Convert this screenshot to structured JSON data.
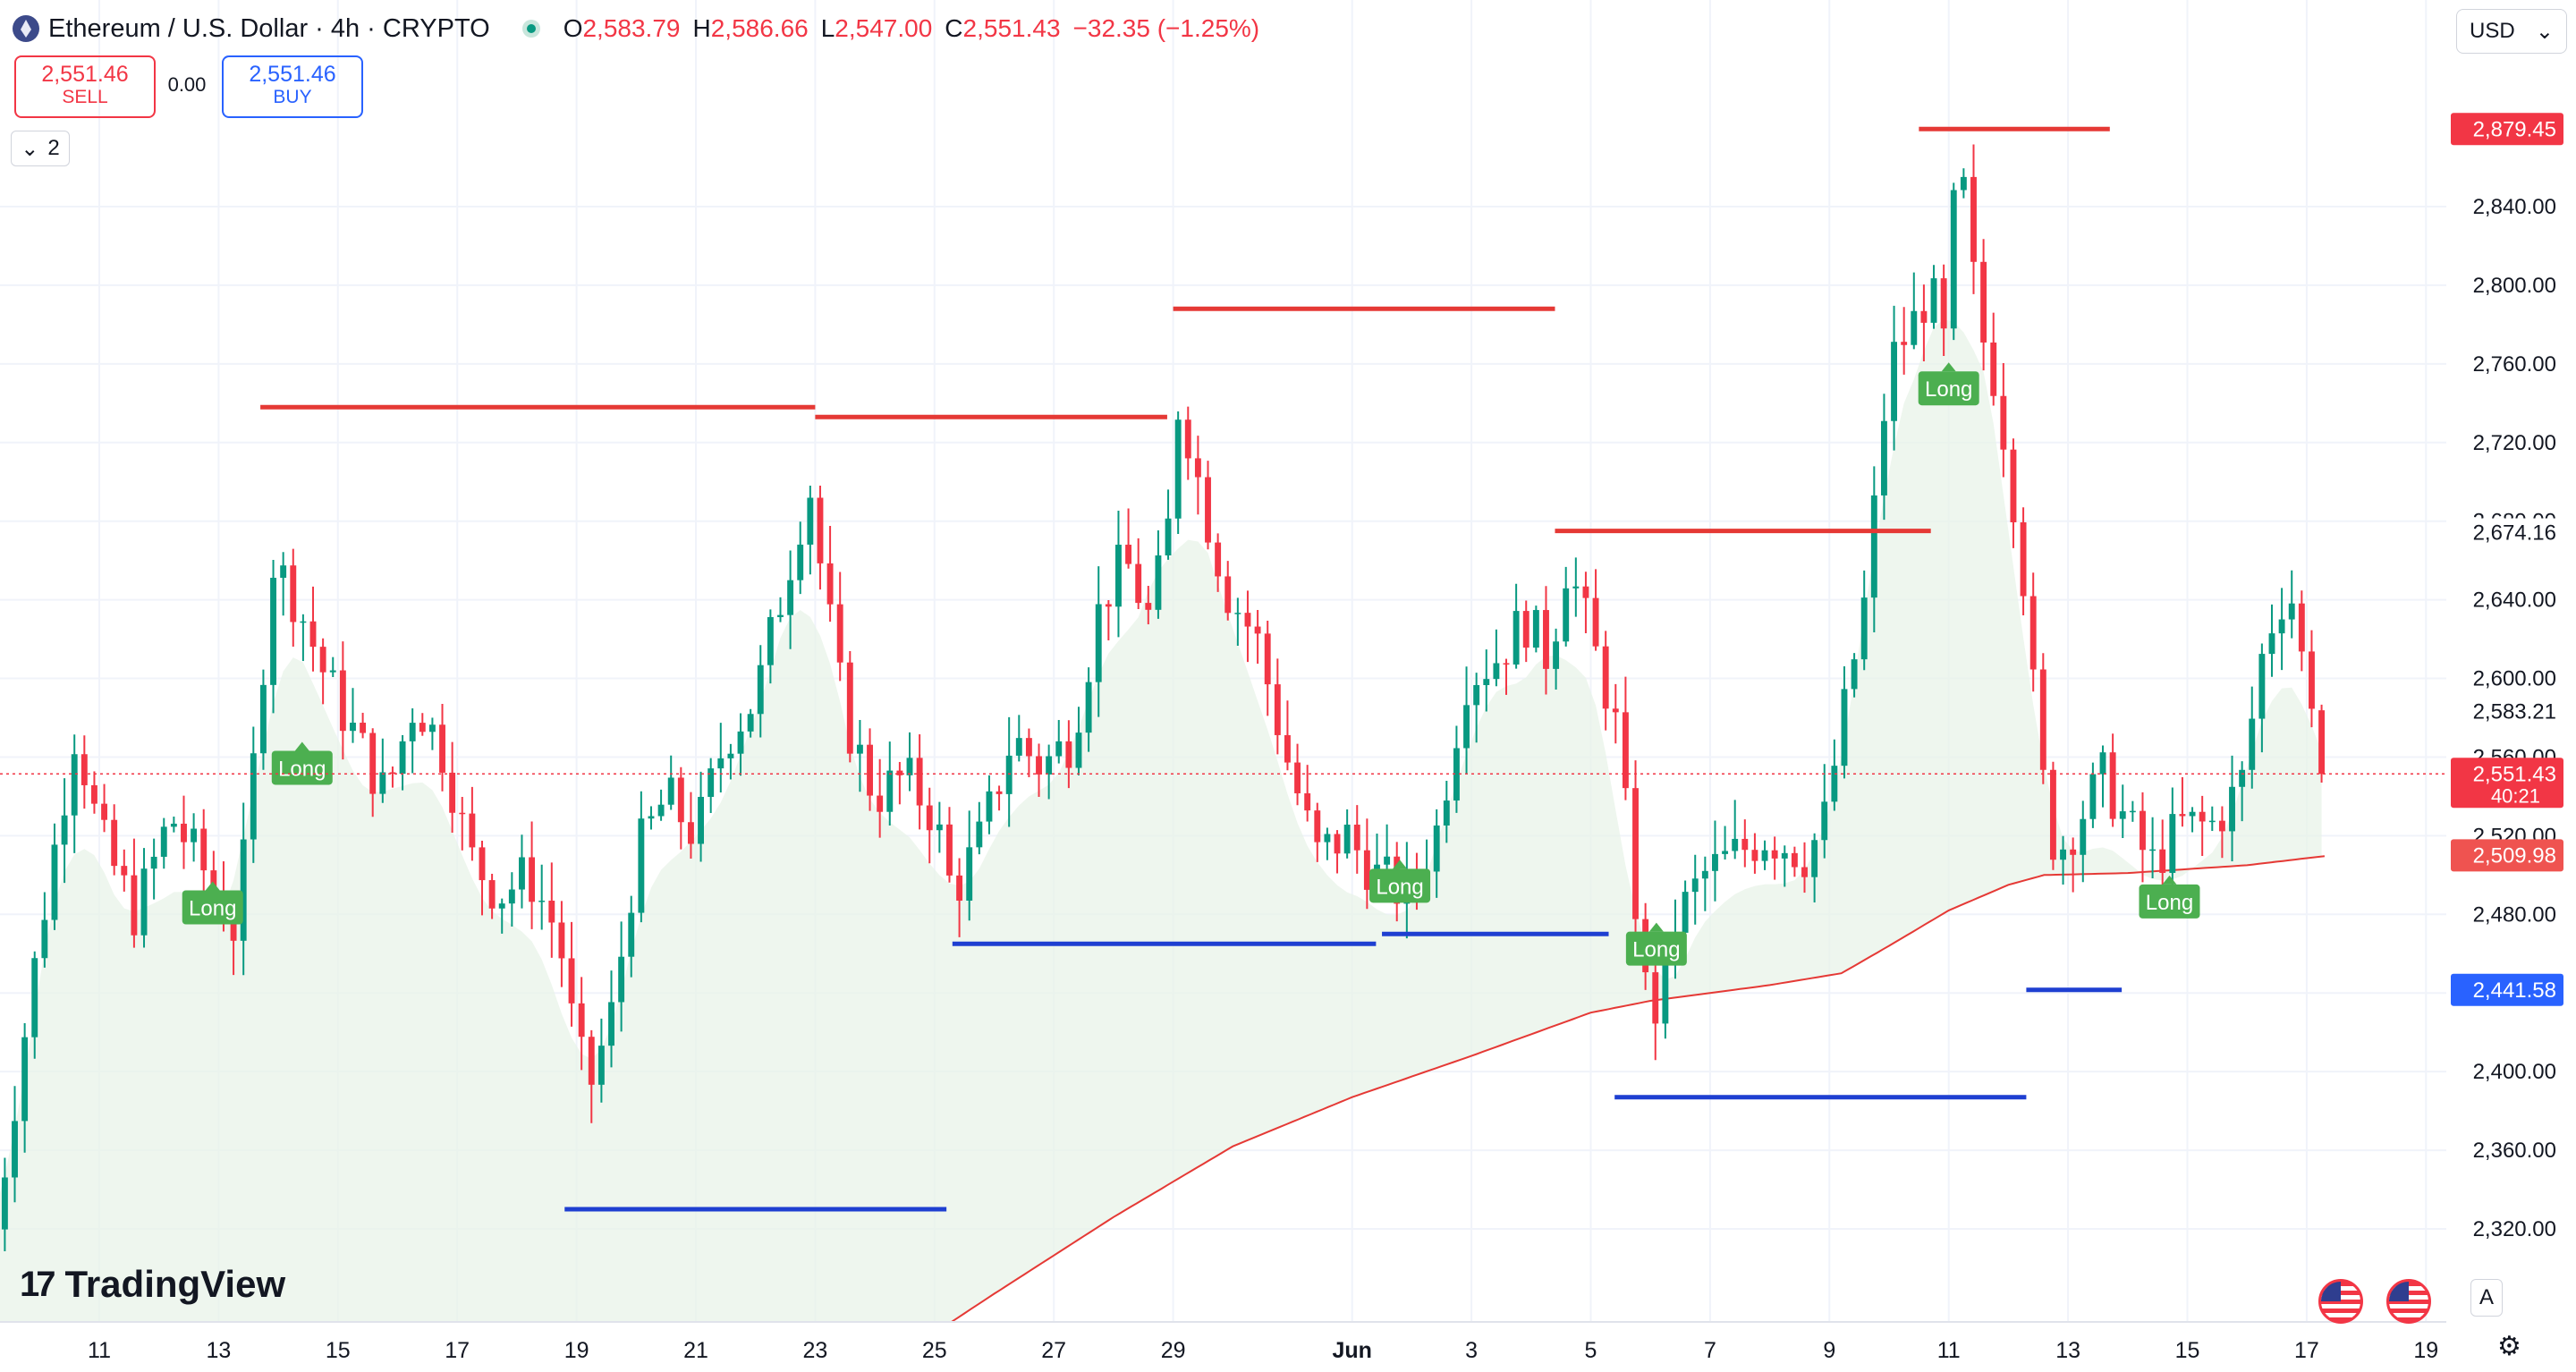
{
  "header": {
    "title": "Ethereum / U.S. Dollar · 4h · CRYPTO",
    "ohlc": [
      {
        "k": "O",
        "v": "2,583.79"
      },
      {
        "k": "H",
        "v": "2,586.66"
      },
      {
        "k": "L",
        "v": "2,547.00"
      },
      {
        "k": "C",
        "v": "2,551.43"
      }
    ],
    "change": "−32.35 (−1.25%)"
  },
  "trade": {
    "sell_price": "2,551.46",
    "sell_label": "SELL",
    "spread": "0.00",
    "buy_price": "2,551.46",
    "buy_label": "BUY"
  },
  "indicators_count": "2",
  "currency": "USD",
  "brand": "TradingView",
  "toolbar": {
    "auto_label": "A"
  },
  "colors": {
    "up": "#089981",
    "down": "#f23645",
    "resistance": "#e53935",
    "support": "#1e3fd1",
    "ma": "#e53935",
    "cloud": "#e8f3e8",
    "signal": "#4caf50"
  },
  "chart_data": {
    "type": "candlestick",
    "title": "Ethereum / U.S. Dollar · 4h · CRYPTO",
    "interval": "4h",
    "ylim": [
      2300,
      2900
    ],
    "y_ticks": [
      "2,320.00",
      "2,360.00",
      "2,400.00",
      "2,440.00",
      "2,480.00",
      "2,520.00",
      "2,560.00",
      "2,600.00",
      "2,640.00",
      "2,680.00",
      "2,720.00",
      "2,760.00",
      "2,800.00",
      "2,840.00"
    ],
    "x_ticks": [
      "11",
      "13",
      "15",
      "17",
      "19",
      "21",
      "23",
      "25",
      "27",
      "29",
      "Jun",
      "3",
      "5",
      "7",
      "9",
      "11",
      "13",
      "15",
      "17",
      "19"
    ],
    "x_range_days": [
      9.25,
      49.9
    ],
    "current_close": 2551.43,
    "price_labels": [
      {
        "text": "2,879.45",
        "value": 2879.45,
        "color": "#f23645"
      },
      {
        "text": "2,674.16",
        "value": 2674.16,
        "color": "#131722",
        "plain": true
      },
      {
        "text": "2,583.21",
        "value": 2583.21,
        "color": "#131722",
        "plain": true
      },
      {
        "text": "2,551.43",
        "sub": "40:21",
        "value": 2551.43,
        "color": "#f23645"
      },
      {
        "text": "2,509.98",
        "value": 2509.98,
        "color": "#ef5350"
      },
      {
        "text": "2,441.58",
        "value": 2441.58,
        "color": "#2962ff"
      }
    ],
    "resistance_lines": [
      {
        "from": 13.7,
        "to": 23.0,
        "value": 2738
      },
      {
        "from": 23.0,
        "to": 28.9,
        "value": 2733
      },
      {
        "from": 29.0,
        "to": 35.4,
        "value": 2788
      },
      {
        "from": 35.4,
        "to": 41.7,
        "value": 2675
      },
      {
        "from": 41.5,
        "to": 44.7,
        "value": 2879.45
      }
    ],
    "support_lines": [
      {
        "from": 18.8,
        "to": 25.2,
        "value": 2330
      },
      {
        "from": 25.3,
        "to": 32.4,
        "value": 2465
      },
      {
        "from": 32.5,
        "to": 36.3,
        "value": 2470
      },
      {
        "from": 36.4,
        "to": 43.3,
        "value": 2387
      },
      {
        "from": 43.3,
        "to": 44.9,
        "value": 2441.58
      }
    ],
    "signals": [
      {
        "label": "Long",
        "x": 12.9,
        "value": 2484
      },
      {
        "label": "Long",
        "x": 14.4,
        "value": 2555
      },
      {
        "label": "Long",
        "x": 32.8,
        "value": 2495
      },
      {
        "label": "Long",
        "x": 37.1,
        "value": 2463
      },
      {
        "label": "Long",
        "x": 42.0,
        "value": 2748
      },
      {
        "label": "Long",
        "x": 45.7,
        "value": 2487
      }
    ],
    "series": [
      {
        "name": "close_anchors",
        "points": [
          [
            9.25,
            2320
          ],
          [
            10.0,
            2470
          ],
          [
            10.6,
            2575
          ],
          [
            11.0,
            2520
          ],
          [
            11.6,
            2480
          ],
          [
            12.2,
            2530
          ],
          [
            12.8,
            2500
          ],
          [
            13.3,
            2470
          ],
          [
            13.6,
            2560
          ],
          [
            13.9,
            2660
          ],
          [
            14.3,
            2640
          ],
          [
            14.8,
            2600
          ],
          [
            15.3,
            2570
          ],
          [
            15.8,
            2540
          ],
          [
            16.3,
            2590
          ],
          [
            16.8,
            2560
          ],
          [
            17.2,
            2510
          ],
          [
            17.7,
            2490
          ],
          [
            18.2,
            2500
          ],
          [
            18.7,
            2470
          ],
          [
            18.95,
            2420
          ],
          [
            19.2,
            2390
          ],
          [
            19.6,
            2430
          ],
          [
            20.0,
            2510
          ],
          [
            20.5,
            2540
          ],
          [
            21.0,
            2520
          ],
          [
            21.5,
            2570
          ],
          [
            22.0,
            2590
          ],
          [
            22.5,
            2650
          ],
          [
            22.9,
            2700
          ],
          [
            23.1,
            2655
          ],
          [
            23.5,
            2580
          ],
          [
            24.0,
            2540
          ],
          [
            24.5,
            2550
          ],
          [
            25.0,
            2530
          ],
          [
            25.3,
            2490
          ],
          [
            25.8,
            2520
          ],
          [
            26.3,
            2570
          ],
          [
            26.8,
            2555
          ],
          [
            27.3,
            2570
          ],
          [
            27.8,
            2640
          ],
          [
            28.2,
            2660
          ],
          [
            28.6,
            2630
          ],
          [
            28.9,
            2670
          ],
          [
            29.1,
            2745
          ],
          [
            29.5,
            2690
          ],
          [
            29.9,
            2645
          ],
          [
            30.4,
            2620
          ],
          [
            30.9,
            2560
          ],
          [
            31.4,
            2510
          ],
          [
            31.9,
            2520
          ],
          [
            32.4,
            2500
          ],
          [
            32.9,
            2490
          ],
          [
            33.4,
            2520
          ],
          [
            33.9,
            2600
          ],
          [
            34.4,
            2610
          ],
          [
            34.9,
            2630
          ],
          [
            35.3,
            2610
          ],
          [
            35.6,
            2660
          ],
          [
            36.0,
            2620
          ],
          [
            36.4,
            2580
          ],
          [
            36.7,
            2500
          ],
          [
            37.0,
            2420
          ],
          [
            37.4,
            2475
          ],
          [
            37.9,
            2500
          ],
          [
            38.4,
            2510
          ],
          [
            38.9,
            2520
          ],
          [
            39.3,
            2515
          ],
          [
            39.6,
            2510
          ],
          [
            39.9,
            2525
          ],
          [
            40.2,
            2575
          ],
          [
            40.6,
            2640
          ],
          [
            41.0,
            2760
          ],
          [
            41.4,
            2780
          ],
          [
            41.7,
            2800
          ],
          [
            41.9,
            2760
          ],
          [
            42.0,
            2820
          ],
          [
            42.2,
            2860
          ],
          [
            42.5,
            2780
          ],
          [
            42.8,
            2750
          ],
          [
            43.1,
            2690
          ],
          [
            43.3,
            2640
          ],
          [
            43.5,
            2560
          ],
          [
            43.8,
            2510
          ],
          [
            44.2,
            2530
          ],
          [
            44.6,
            2550
          ],
          [
            45.0,
            2525
          ],
          [
            45.4,
            2505
          ],
          [
            45.9,
            2525
          ],
          [
            46.4,
            2525
          ],
          [
            46.9,
            2545
          ],
          [
            47.3,
            2620
          ],
          [
            47.7,
            2650
          ],
          [
            48.0,
            2595
          ],
          [
            48.2,
            2592
          ],
          [
            48.4,
            2551.43
          ]
        ]
      },
      {
        "name": "ma_anchors",
        "points": [
          [
            26.0,
            2287
          ],
          [
            28.0,
            2326
          ],
          [
            30.0,
            2362
          ],
          [
            32.0,
            2387
          ],
          [
            34.0,
            2408
          ],
          [
            36.0,
            2430
          ],
          [
            37.0,
            2436
          ],
          [
            39.0,
            2444
          ],
          [
            40.2,
            2450
          ],
          [
            41.0,
            2464
          ],
          [
            42.0,
            2482
          ],
          [
            43.0,
            2495
          ],
          [
            43.6,
            2500
          ],
          [
            45.0,
            2501
          ],
          [
            46.0,
            2503
          ],
          [
            47.0,
            2505
          ],
          [
            48.4,
            2509.98
          ]
        ]
      }
    ]
  }
}
